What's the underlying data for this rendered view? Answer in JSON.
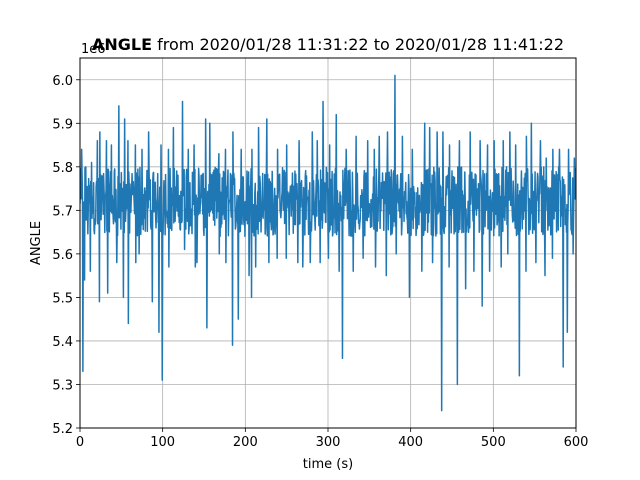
{
  "chart_data": {
    "type": "line",
    "title_bold": "ANGLE",
    "title_rest": " from 2020/01/28 11:31:22 to 2020/01/28 11:41:22",
    "xlabel": "time (s)",
    "ylabel": "ANGLE",
    "offset_label": "1e6",
    "xlim": [
      0,
      600
    ],
    "ylim": [
      5.2,
      6.05
    ],
    "x_ticks": [
      0,
      100,
      200,
      300,
      400,
      500,
      600
    ],
    "y_ticks": [
      5.2,
      5.3,
      5.4,
      5.5,
      5.6,
      5.7,
      5.8,
      5.9,
      6.0
    ],
    "x_tick_labels": [
      "0",
      "100",
      "200",
      "300",
      "400",
      "500",
      "600"
    ],
    "y_tick_labels": [
      "5.2",
      "5.3",
      "5.4",
      "5.5",
      "5.6",
      "5.7",
      "5.8",
      "5.9",
      "6.0"
    ],
    "grid": true,
    "series": [
      {
        "color": "#1f77b4",
        "baseline": 5.72,
        "band_low": 5.64,
        "band_high": 5.8,
        "spikes_up": [
          [
            2,
            5.84
          ],
          [
            7,
            5.8
          ],
          [
            14,
            5.81
          ],
          [
            21,
            5.86
          ],
          [
            24,
            5.88
          ],
          [
            32,
            5.86
          ],
          [
            38,
            5.85
          ],
          [
            47,
            5.94
          ],
          [
            54,
            5.91
          ],
          [
            58,
            5.86
          ],
          [
            67,
            5.85
          ],
          [
            75,
            5.84
          ],
          [
            83,
            5.88
          ],
          [
            98,
            5.85
          ],
          [
            107,
            5.84
          ],
          [
            113,
            5.89
          ],
          [
            124,
            5.95
          ],
          [
            131,
            5.84
          ],
          [
            138,
            5.85
          ],
          [
            152,
            5.91
          ],
          [
            157,
            5.9
          ],
          [
            168,
            5.83
          ],
          [
            176,
            5.84
          ],
          [
            185,
            5.88
          ],
          [
            195,
            5.84
          ],
          [
            208,
            5.84
          ],
          [
            216,
            5.89
          ],
          [
            226,
            5.91
          ],
          [
            239,
            5.84
          ],
          [
            250,
            5.85
          ],
          [
            265,
            5.86
          ],
          [
            281,
            5.88
          ],
          [
            287,
            5.86
          ],
          [
            294,
            5.95
          ],
          [
            302,
            5.85
          ],
          [
            310,
            5.92
          ],
          [
            322,
            5.84
          ],
          [
            334,
            5.87
          ],
          [
            348,
            5.86
          ],
          [
            356,
            5.84
          ],
          [
            362,
            5.87
          ],
          [
            372,
            5.88
          ],
          [
            381,
            6.01
          ],
          [
            390,
            5.87
          ],
          [
            402,
            5.84
          ],
          [
            417,
            5.9
          ],
          [
            423,
            5.89
          ],
          [
            432,
            5.88
          ],
          [
            439,
            5.88
          ],
          [
            447,
            5.85
          ],
          [
            459,
            5.86
          ],
          [
            472,
            5.88
          ],
          [
            484,
            5.86
          ],
          [
            493,
            5.85
          ],
          [
            501,
            5.86
          ],
          [
            512,
            5.86
          ],
          [
            520,
            5.88
          ],
          [
            527,
            5.85
          ],
          [
            540,
            5.87
          ],
          [
            546,
            5.9
          ],
          [
            557,
            5.86
          ],
          [
            564,
            5.82
          ],
          [
            572,
            5.84
          ],
          [
            580,
            5.84
          ],
          [
            591,
            5.84
          ],
          [
            598,
            5.82
          ]
        ],
        "spikes_down": [
          [
            3,
            5.33
          ],
          [
            5,
            5.54
          ],
          [
            12,
            5.56
          ],
          [
            23,
            5.49
          ],
          [
            33,
            5.51
          ],
          [
            44,
            5.58
          ],
          [
            52,
            5.5
          ],
          [
            58,
            5.44
          ],
          [
            67,
            5.58
          ],
          [
            71,
            5.6
          ],
          [
            87,
            5.49
          ],
          [
            95,
            5.42
          ],
          [
            99,
            5.31
          ],
          [
            107,
            5.57
          ],
          [
            126,
            5.61
          ],
          [
            139,
            5.57
          ],
          [
            141,
            5.58
          ],
          [
            153,
            5.43
          ],
          [
            168,
            5.6
          ],
          [
            176,
            5.58
          ],
          [
            184,
            5.39
          ],
          [
            191,
            5.45
          ],
          [
            204,
            5.55
          ],
          [
            207,
            5.5
          ],
          [
            212,
            5.57
          ],
          [
            228,
            5.58
          ],
          [
            238,
            5.59
          ],
          [
            249,
            5.59
          ],
          [
            263,
            5.58
          ],
          [
            269,
            5.57
          ],
          [
            278,
            5.58
          ],
          [
            290,
            5.58
          ],
          [
            300,
            5.59
          ],
          [
            313,
            5.56
          ],
          [
            317,
            5.36
          ],
          [
            330,
            5.56
          ],
          [
            342,
            5.59
          ],
          [
            357,
            5.57
          ],
          [
            370,
            5.55
          ],
          [
            382,
            5.6
          ],
          [
            398,
            5.5
          ],
          [
            413,
            5.56
          ],
          [
            426,
            5.58
          ],
          [
            437,
            5.24
          ],
          [
            446,
            5.57
          ],
          [
            456,
            5.3
          ],
          [
            466,
            5.52
          ],
          [
            476,
            5.56
          ],
          [
            486,
            5.48
          ],
          [
            495,
            5.56
          ],
          [
            509,
            5.57
          ],
          [
            517,
            5.6
          ],
          [
            531,
            5.32
          ],
          [
            539,
            5.56
          ],
          [
            551,
            5.58
          ],
          [
            562,
            5.55
          ],
          [
            571,
            5.59
          ],
          [
            584,
            5.34
          ],
          [
            589,
            5.42
          ],
          [
            596,
            5.6
          ]
        ]
      }
    ]
  }
}
